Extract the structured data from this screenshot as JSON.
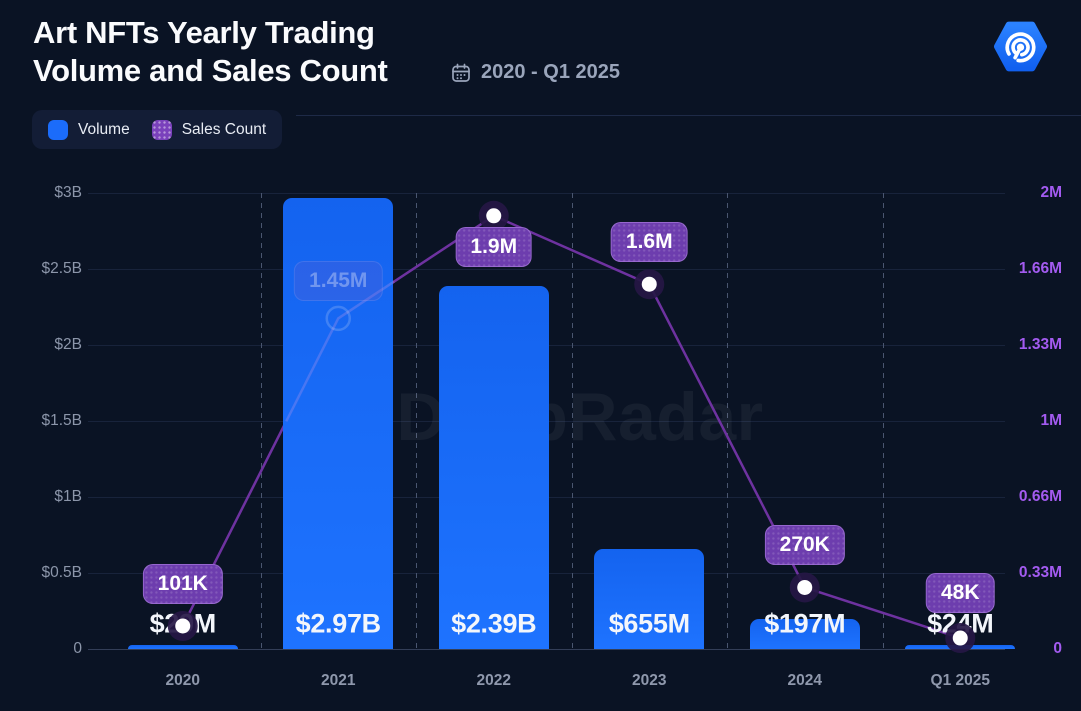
{
  "header": {
    "title": "Art NFTs Yearly Trading\nVolume and Sales Count",
    "date_range": "2020 - Q1 2025",
    "brand_logo": "dappradar-hexagon-radar-logo"
  },
  "legend": {
    "volume_label": "Volume",
    "sales_label": "Sales Count"
  },
  "watermark": "DappRadar",
  "colors": {
    "background": "#0a1324",
    "bar_blue": "#1b6cfa",
    "badge_purple": "#6d3dae",
    "line_purple": "#6e32a0",
    "right_axis_purple": "#a35bf0",
    "left_axis_gray": "#8c96aa",
    "title_white": "#fafbfd"
  },
  "chart_data": {
    "type": "bar+line combo",
    "categories": [
      "2020",
      "2021",
      "2022",
      "2023",
      "2024",
      "Q1 2025"
    ],
    "series": [
      {
        "name": "Volume",
        "type": "bar",
        "axis": "left",
        "values_usd": [
          29000000,
          2970000000,
          2390000000,
          655000000,
          197000000,
          24000000
        ],
        "labels": [
          "$29M",
          "$2.97B",
          "$2.39B",
          "$655M",
          "$197M",
          "$24M"
        ]
      },
      {
        "name": "Sales Count",
        "type": "line",
        "axis": "right",
        "values": [
          101000,
          1450000,
          1900000,
          1600000,
          270000,
          48000
        ],
        "labels": [
          "101K",
          "1.45M",
          "1.9M",
          "1.6M",
          "270K",
          "48K"
        ],
        "label_positions": [
          "above",
          "faint-behind-bar",
          "below",
          "above",
          "above",
          "above"
        ]
      }
    ],
    "left_axis": {
      "ticks": [
        "$3B",
        "$2.5B",
        "$2B",
        "$1.5B",
        "$1B",
        "$0.5B",
        "0"
      ],
      "max": 3000000000
    },
    "right_axis": {
      "ticks": [
        "2M",
        "1.66M",
        "1.33M",
        "1M",
        "0.66M",
        "0.33M",
        "0"
      ],
      "max": 2000000
    },
    "grid": {
      "horizontal_lines": true,
      "vertical_dashed_lines": true
    },
    "legend_position": "top-left"
  }
}
